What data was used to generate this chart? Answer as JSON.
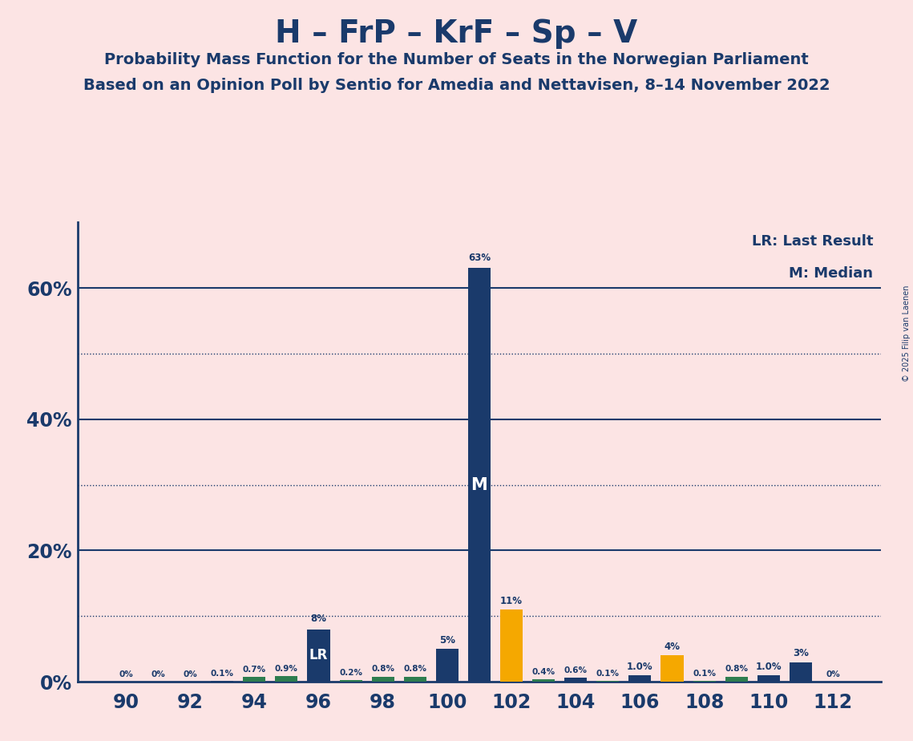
{
  "title": "H – FrP – KrF – Sp – V",
  "subtitle1": "Probability Mass Function for the Number of Seats in the Norwegian Parliament",
  "subtitle2": "Based on an Opinion Poll by Sentio for Amedia and Nettavisen, 8–14 November 2022",
  "copyright": "© 2025 Filip van Laenen",
  "background_color": "#fce4e4",
  "plot_bg_color": "#fce4e4",
  "title_color": "#1a3a6b",
  "subtitle_color": "#1a3a6b",
  "bar_dark_blue": "#1a3a6b",
  "bar_green": "#2e7d4f",
  "bar_yellow": "#f5a800",
  "seats": [
    90,
    91,
    92,
    93,
    94,
    95,
    96,
    97,
    98,
    99,
    100,
    101,
    102,
    103,
    104,
    105,
    106,
    107,
    108,
    109,
    110,
    111,
    112
  ],
  "values": [
    0.0,
    0.0,
    0.0,
    0.1,
    0.7,
    0.9,
    8.0,
    0.2,
    0.8,
    0.8,
    5.0,
    63.0,
    11.0,
    0.4,
    0.6,
    0.1,
    1.0,
    4.0,
    0.1,
    0.8,
    1.0,
    3.0,
    0.0
  ],
  "bar_colors": [
    "dark_blue",
    "dark_blue",
    "dark_blue",
    "dark_blue",
    "green",
    "green",
    "dark_blue",
    "green",
    "green",
    "green",
    "dark_blue",
    "dark_blue",
    "yellow",
    "green",
    "dark_blue",
    "green",
    "dark_blue",
    "yellow",
    "green",
    "green",
    "dark_blue",
    "dark_blue",
    "dark_blue"
  ],
  "labels": [
    "0%",
    "0%",
    "0%",
    "0.1%",
    "0.7%",
    "0.9%",
    "8%",
    "0.2%",
    "0.8%",
    "0.8%",
    "5%",
    "63%",
    "11%",
    "0.4%",
    "0.6%",
    "0.1%",
    "1.0%",
    "4%",
    "0.1%",
    "0.8%",
    "1.0%",
    "3%",
    "0%"
  ],
  "median_seat": 101,
  "lr_seat": 96,
  "lr_label_text": "LR",
  "median_label": "M",
  "yticks": [
    0,
    20,
    40,
    60
  ],
  "ytick_labels": [
    "0%",
    "20%",
    "40%",
    "60%"
  ],
  "grid_dotted": [
    10,
    30,
    50
  ],
  "grid_solid": [
    20,
    40,
    60
  ],
  "ymax": 70,
  "legend_lr": "LR: Last Result",
  "legend_m": "M: Median",
  "axis_color": "#1a3a6b",
  "grid_color": "#1a3a6b",
  "xlim": [
    88.5,
    113.5
  ],
  "xticks": [
    90,
    92,
    94,
    96,
    98,
    100,
    102,
    104,
    106,
    108,
    110,
    112
  ]
}
